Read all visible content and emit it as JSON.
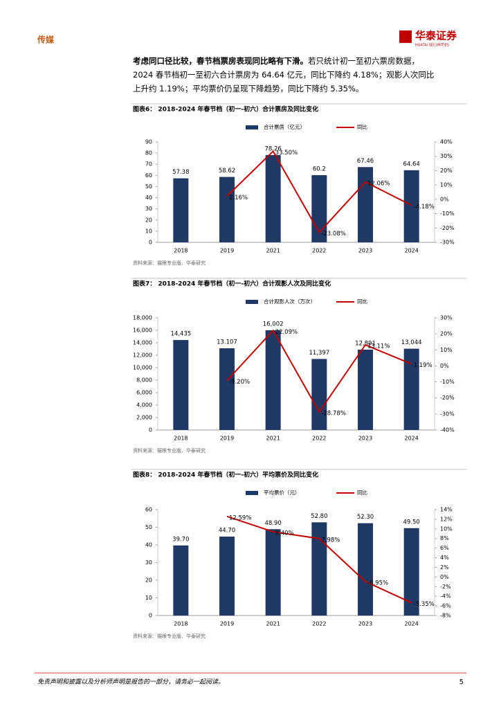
{
  "header": {
    "section": "传媒",
    "logo": "华泰证券",
    "logo_sub": "HUATAI SECURITIES"
  },
  "paragraph": {
    "bold": "考虑同口径比较，春节档票房表现同比略有下滑。",
    "text": "若只统计初一至初六票房数据，2024 春节档初一至初六合计票房为 64.64 亿元，同比下降约 4.18%；观影人次同比上升约 1.19%；平均票价仍呈现下降趋势，同比下降约 5.35%。"
  },
  "chart_data": [
    {
      "type": "combo",
      "title": "图表6： 2018-2024 年春节档（初一-初六）合计票房及同比变化",
      "categories": [
        "2018",
        "2019",
        "2021",
        "2022",
        "2023",
        "2024"
      ],
      "series": [
        {
          "name": "合计票房（亿元）",
          "type": "bar",
          "color": "#1f3864",
          "values": [
            57.38,
            58.62,
            78.26,
            60.2,
            67.46,
            64.64
          ]
        },
        {
          "name": "同比",
          "type": "line",
          "axis": "y2",
          "color": "#c00000",
          "values": [
            null,
            2.16,
            33.5,
            -23.08,
            12.06,
            -4.18
          ],
          "value_labels": [
            null,
            "2.16%",
            "33.50%",
            "-23.08%",
            "12.06%",
            "-4.18%"
          ]
        }
      ],
      "ylim": [
        0,
        90
      ],
      "yticks": [
        0,
        10,
        20,
        30,
        40,
        50,
        60,
        70,
        80,
        90
      ],
      "y2lim": [
        -30,
        40
      ],
      "y2ticks": [
        {
          "value": -30,
          "label": "-30%"
        },
        {
          "value": -20,
          "label": "-20%"
        },
        {
          "value": -10,
          "label": "-10%"
        },
        {
          "value": 0,
          "label": "0%"
        },
        {
          "value": 10,
          "label": "10%"
        },
        {
          "value": 20,
          "label": "20%"
        },
        {
          "value": 30,
          "label": "30%"
        },
        {
          "value": 40,
          "label": "40%"
        }
      ],
      "source": "资料来源：猫眼专业版、华泰研究"
    },
    {
      "type": "combo",
      "title": "图表7： 2018-2024 年春节档（初一-初六）合计观影人次及同比变化",
      "categories": [
        "2018",
        "2019",
        "2021",
        "2022",
        "2023",
        "2024"
      ],
      "series": [
        {
          "name": "合计观影人次（万次）",
          "type": "bar",
          "color": "#1f3864",
          "values": [
            14435,
            13107,
            16002,
            11397,
            12891,
            13044
          ],
          "value_labels": [
            "14,435",
            "13.107",
            "16,002",
            "11,397",
            "12,891",
            "13,044"
          ]
        },
        {
          "name": "同比",
          "type": "line",
          "axis": "y2",
          "color": "#c00000",
          "values": [
            null,
            -9.2,
            22.09,
            -28.78,
            13.11,
            1.19
          ],
          "value_labels": [
            null,
            "-9.20%",
            "22.09%",
            "-28.78%",
            "13.11%",
            "1.19%"
          ]
        }
      ],
      "ylim": [
        0,
        18000
      ],
      "yticks": [
        0,
        {
          "value": 2000,
          "label": "2,000"
        },
        {
          "value": 4000,
          "label": "4,000"
        },
        {
          "value": 6000,
          "label": "6,000"
        },
        {
          "value": 8000,
          "label": "8,000"
        },
        {
          "value": 10000,
          "label": "10,000"
        },
        {
          "value": 12000,
          "label": "12,000"
        },
        {
          "value": 14000,
          "label": "14,000"
        },
        {
          "value": 16000,
          "label": "16,000"
        },
        {
          "value": 18000,
          "label": "18,000"
        }
      ],
      "y2lim": [
        -40,
        30
      ],
      "y2ticks": [
        {
          "value": -40,
          "label": "-40%"
        },
        {
          "value": -30,
          "label": "-30%"
        },
        {
          "value": -20,
          "label": "-20%"
        },
        {
          "value": -10,
          "label": "-10%"
        },
        {
          "value": 0,
          "label": "0%"
        },
        {
          "value": 10,
          "label": "10%"
        },
        {
          "value": 20,
          "label": "20%"
        },
        {
          "value": 30,
          "label": "30%"
        }
      ],
      "source": "资料来源：猫眼专业版、华泰研究"
    },
    {
      "type": "combo",
      "title": "图表8： 2018-2024 年春节档（初一-初六）平均票价及同比变化",
      "categories": [
        "2018",
        "2019",
        "2021",
        "2022",
        "2023",
        "2024"
      ],
      "series": [
        {
          "name": "平均票价（元）",
          "type": "bar",
          "color": "#1f3864",
          "values": [
            39.7,
            44.7,
            48.9,
            52.8,
            52.3,
            49.5
          ],
          "value_labels": [
            "39.70",
            "44.70",
            "48.90",
            "52.80",
            "52.30",
            "49.50"
          ]
        },
        {
          "name": "同比",
          "type": "line",
          "axis": "y2",
          "color": "#c00000",
          "values": [
            null,
            12.59,
            9.4,
            7.98,
            -0.95,
            -5.35
          ],
          "value_labels": [
            null,
            "12.59%",
            "9.40%",
            "7.98%",
            "-0.95%",
            "-5.35%"
          ]
        }
      ],
      "ylim": [
        0,
        60
      ],
      "yticks": [
        0,
        10,
        20,
        30,
        40,
        50,
        60
      ],
      "y2lim": [
        -8,
        14
      ],
      "y2ticks": [
        {
          "value": -8,
          "label": "-8%"
        },
        {
          "value": -6,
          "label": "-6%"
        },
        {
          "value": -4,
          "label": "-4%"
        },
        {
          "value": -2,
          "label": "-2%"
        },
        {
          "value": 0,
          "label": "0%"
        },
        {
          "value": 2,
          "label": "2%"
        },
        {
          "value": 4,
          "label": "4%"
        },
        {
          "value": 6,
          "label": "6%"
        },
        {
          "value": 8,
          "label": "8%"
        },
        {
          "value": 10,
          "label": "10%"
        },
        {
          "value": 12,
          "label": "12%"
        },
        {
          "value": 14,
          "label": "14%"
        }
      ],
      "source": "资料来源：猫眼专业版、华泰研究"
    }
  ],
  "footer": {
    "disclaimer": "免责声明和披露以及分析师声明是报告的一部分，请务必一起阅读。",
    "page": "5"
  }
}
